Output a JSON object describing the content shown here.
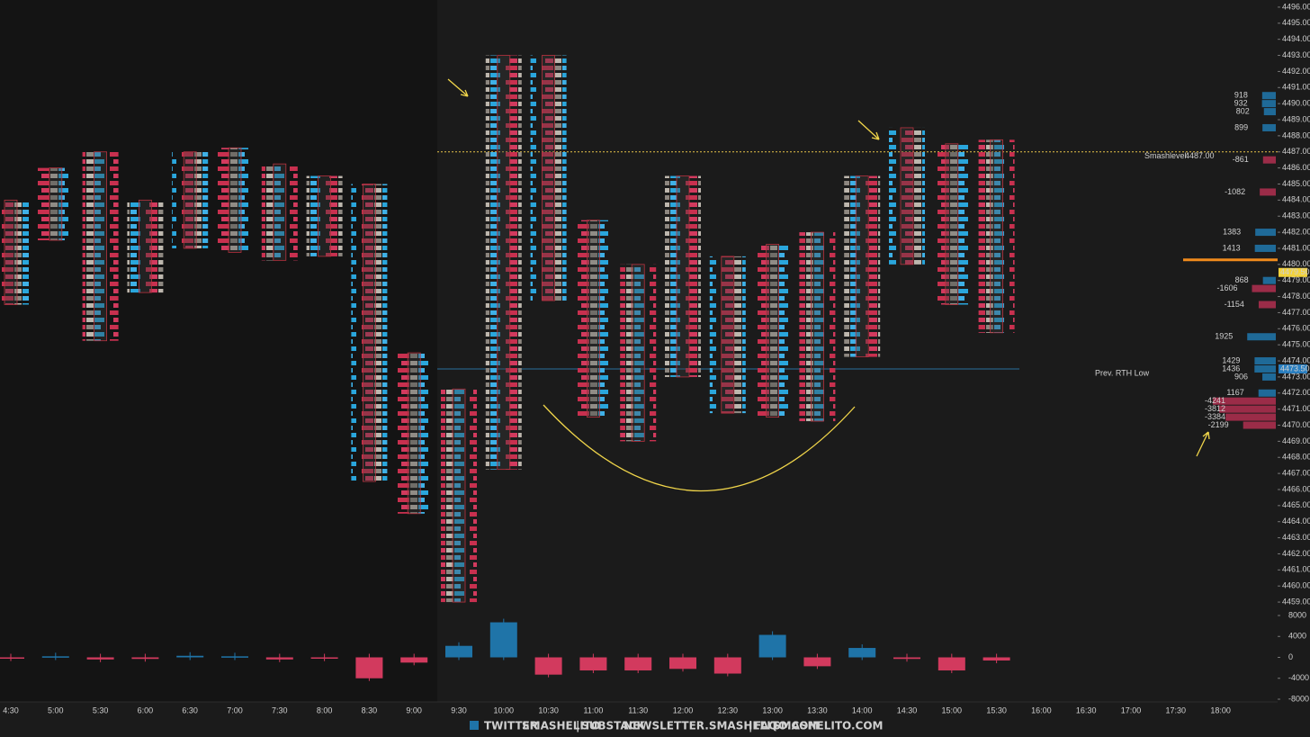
{
  "chart_data": [
    {
      "type": "footprint",
      "categories": [
        "4:30",
        "5:00",
        "5:30",
        "6:00",
        "6:30",
        "7:00",
        "7:30",
        "8:00",
        "8:30",
        "9:00",
        "9:30",
        "10:00",
        "10:30",
        "11:00",
        "11:30",
        "12:00",
        "12:30",
        "13:00",
        "13:30",
        "14:00",
        "14:30",
        "15:00",
        "15:30",
        "16:00",
        "16:30",
        "17:00",
        "17:30",
        "18:00"
      ],
      "high": [
        4484,
        4486,
        4487,
        4484,
        4487,
        4487.25,
        4486.25,
        4485.5,
        4485,
        4474.5,
        4472.25,
        4493,
        4493,
        4482.75,
        4480,
        4485.5,
        4480.5,
        4481.25,
        4482,
        4485.5,
        4488.5,
        4487.5,
        4487.75,
        null,
        null,
        null,
        null,
        null
      ],
      "low": [
        4477.5,
        4481.5,
        4475.25,
        4478.25,
        4481,
        4480.75,
        4480.25,
        4480.5,
        4466.5,
        4464.5,
        4459,
        4467.25,
        4477.75,
        4470.5,
        4469,
        4473,
        4470.75,
        4470.5,
        4470.25,
        4474.25,
        4480,
        4477.5,
        4475.75,
        null,
        null,
        null,
        null,
        null
      ],
      "ylim": [
        4458.5,
        4496.5
      ],
      "yticks": [
        {
          "value": 4496,
          "label": "4496.00"
        },
        {
          "value": 4495,
          "label": "4495.00"
        },
        {
          "value": 4494,
          "label": "4494.00"
        },
        {
          "value": 4493,
          "label": "4493.00"
        },
        {
          "value": 4492,
          "label": "4492.00"
        },
        {
          "value": 4491,
          "label": "4491.00"
        },
        {
          "value": 4490,
          "label": "4490.00"
        },
        {
          "value": 4489,
          "label": "4489.00"
        },
        {
          "value": 4488,
          "label": "4488.00"
        },
        {
          "value": 4487,
          "label": "4487.00"
        },
        {
          "value": 4486,
          "label": "4486.00"
        },
        {
          "value": 4485,
          "label": "4485.00"
        },
        {
          "value": 4484,
          "label": "4484.00"
        },
        {
          "value": 4483,
          "label": "4483.00"
        },
        {
          "value": 4482,
          "label": "4482.00"
        },
        {
          "value": 4481,
          "label": "4481.00"
        },
        {
          "value": 4480,
          "label": "4480.00"
        },
        {
          "value": 4479,
          "label": "4479.00"
        },
        {
          "value": 4478,
          "label": "4478.00"
        },
        {
          "value": 4477,
          "label": "4477.00"
        },
        {
          "value": 4476,
          "label": "4476.00"
        },
        {
          "value": 4475,
          "label": "4475.00"
        },
        {
          "value": 4474,
          "label": "4474.00"
        },
        {
          "value": 4473,
          "label": "4473.00"
        },
        {
          "value": 4472,
          "label": "4472.00"
        },
        {
          "value": 4471,
          "label": "4471.00"
        },
        {
          "value": 4470,
          "label": "4470.00"
        },
        {
          "value": 4469,
          "label": "4469.00"
        },
        {
          "value": 4468,
          "label": "4468.00"
        },
        {
          "value": 4467,
          "label": "4467.00"
        },
        {
          "value": 4466,
          "label": "4466.00"
        },
        {
          "value": 4465,
          "label": "4465.00"
        },
        {
          "value": 4464,
          "label": "4464.00"
        },
        {
          "value": 4463,
          "label": "4463.00"
        },
        {
          "value": 4462,
          "label": "4462.00"
        },
        {
          "value": 4461,
          "label": "4461.00"
        },
        {
          "value": 4460,
          "label": "4460.00"
        },
        {
          "value": 4459,
          "label": "4459.00"
        }
      ],
      "levels": [
        {
          "label": "Smashlevel",
          "value": 4487,
          "value_label": "4487.00",
          "color": "#e8c44a"
        },
        {
          "label": "Prev. RTH Low",
          "value": 4473.5,
          "color": "#2a6f9e"
        }
      ],
      "price_markers": [
        {
          "value": 4479.5,
          "label": "4479.50",
          "color": "#f2d23c"
        },
        {
          "value": 4473.5,
          "label": "4473.50",
          "color": "#2a7fc0"
        }
      ],
      "profile": {
        "prices": [
          4490.5,
          4490,
          4489.5,
          4488.5,
          4486.5,
          4484.5,
          4482,
          4481,
          4479,
          4478.5,
          4477.5,
          4475.5,
          4474,
          4473.5,
          4473,
          4472,
          4471.5,
          4471,
          4470.5,
          4470
        ],
        "values": [
          918,
          932,
          802,
          899,
          -861,
          -1082,
          1383,
          1413,
          868,
          -1606,
          -1154,
          1925,
          1429,
          1436,
          906,
          1167,
          -4241,
          -3812,
          -3384,
          -2199
        ]
      }
    },
    {
      "type": "bar",
      "values": [
        -200,
        200,
        -400,
        -300,
        300,
        200,
        -400,
        -200,
        -4000,
        -1000,
        2200,
        6700,
        -3300,
        -2500,
        -2500,
        -2200,
        -3100,
        4300,
        -1700,
        1800,
        -300,
        -2500,
        -600,
        null,
        null,
        null,
        null,
        null
      ],
      "ylim": [
        -8000,
        8000
      ],
      "yticks": [
        8000,
        4000,
        0,
        -4000,
        -8000
      ],
      "up_color": "#1f74a8",
      "down_color": "#d23a5e"
    }
  ],
  "footer": {
    "items": [
      "TWITTER",
      "SMASHELITO",
      "|",
      "SUBSTACK",
      "NEWSLETTER.SMASHELITO.COM",
      "|",
      "FAQ",
      "SMASHELITO.COM"
    ]
  }
}
